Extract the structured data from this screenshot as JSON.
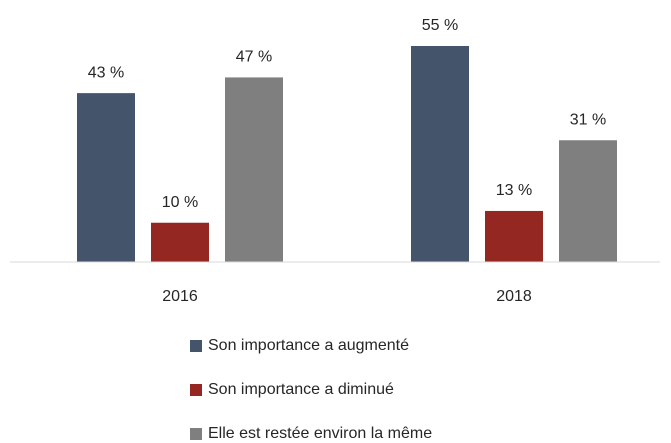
{
  "chart_data": {
    "type": "bar",
    "categories": [
      "2016",
      "2018"
    ],
    "series": [
      {
        "name": "Son importance a augmenté",
        "color": "#44546a",
        "values": [
          43,
          55
        ],
        "value_labels": [
          "43 %",
          "55 %"
        ]
      },
      {
        "name": "Son importance a diminué",
        "color": "#952723",
        "values": [
          10,
          13
        ],
        "value_labels": [
          "10 %",
          "13 %"
        ]
      },
      {
        "name": "Elle est restée environ la même",
        "color": "#7f7f7f",
        "values": [
          47,
          31
        ],
        "value_labels": [
          "47 %",
          "31 %"
        ]
      }
    ]
  }
}
